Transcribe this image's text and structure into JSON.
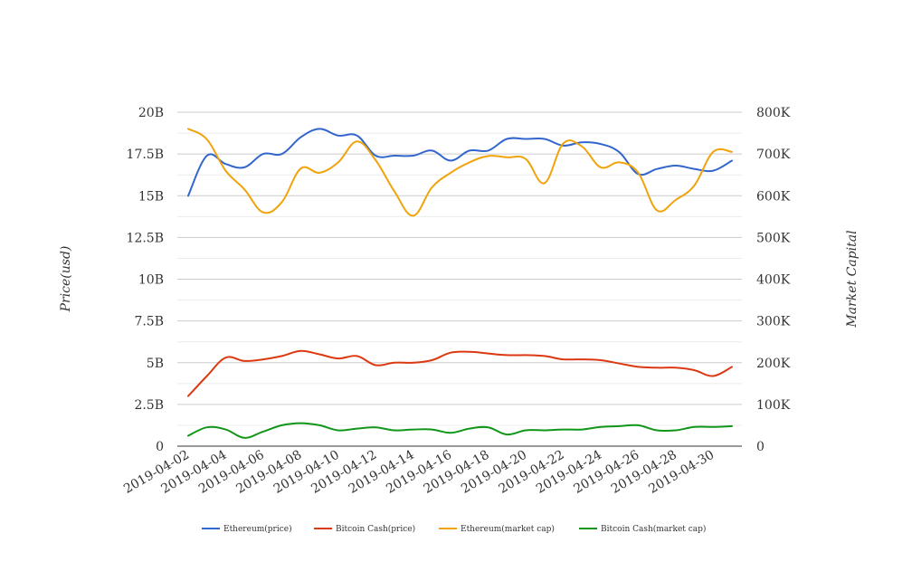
{
  "chart_data": {
    "type": "line",
    "title": "",
    "y_left_label": "Price(usd)",
    "y_right_label": "Market Capital",
    "y_left_range": [
      0,
      20000000000
    ],
    "y_right_range": [
      0,
      800000
    ],
    "y_left_ticks": [
      "0",
      "2.5B",
      "5B",
      "7.5B",
      "10B",
      "12.5B",
      "15B",
      "17.5B",
      "20B"
    ],
    "y_right_ticks": [
      "0",
      "100K",
      "200K",
      "300K",
      "400K",
      "500K",
      "600K",
      "700K",
      "800K"
    ],
    "x_tick_labels": [
      "2019-04-02",
      "2019-04-04",
      "2019-04-06",
      "2019-04-08",
      "2019-04-10",
      "2019-04-12",
      "2019-04-14",
      "2019-04-16",
      "2019-04-18",
      "2019-04-20",
      "2019-04-22",
      "2019-04-24",
      "2019-04-26",
      "2019-04-28",
      "2019-04-30"
    ],
    "x": [
      "2019-04-02",
      "2019-04-03",
      "2019-04-04",
      "2019-04-05",
      "2019-04-06",
      "2019-04-07",
      "2019-04-08",
      "2019-04-09",
      "2019-04-10",
      "2019-04-11",
      "2019-04-12",
      "2019-04-13",
      "2019-04-14",
      "2019-04-15",
      "2019-04-16",
      "2019-04-17",
      "2019-04-18",
      "2019-04-19",
      "2019-04-20",
      "2019-04-21",
      "2019-04-22",
      "2019-04-23",
      "2019-04-24",
      "2019-04-25",
      "2019-04-26",
      "2019-04-27",
      "2019-04-28",
      "2019-04-29",
      "2019-04-30",
      "2019-05-01"
    ],
    "legend_position": "bottom",
    "grid": true,
    "series": [
      {
        "name": "Ethereum(price)",
        "axis": "left",
        "color": "#3366cc",
        "values": [
          15000000000,
          17400000000,
          16900000000,
          16700000000,
          17500000000,
          17500000000,
          18500000000,
          19000000000,
          18600000000,
          18600000000,
          17400000000,
          17400000000,
          17400000000,
          17700000000,
          17100000000,
          17700000000,
          17700000000,
          18400000000,
          18400000000,
          18400000000,
          18000000000,
          18200000000,
          18100000000,
          17600000000,
          16300000000,
          16600000000,
          16800000000,
          16600000000,
          16500000000,
          17100000000
        ]
      },
      {
        "name": "Bitcoin Cash(price)",
        "axis": "left",
        "color": "#dc3912",
        "values": [
          3000000000,
          4200000000,
          5300000000,
          5100000000,
          5200000000,
          5400000000,
          5700000000,
          5500000000,
          5250000000,
          5400000000,
          4850000000,
          5000000000,
          5000000000,
          5150000000,
          5600000000,
          5650000000,
          5550000000,
          5450000000,
          5450000000,
          5400000000,
          5200000000,
          5200000000,
          5150000000,
          4950000000,
          4750000000,
          4700000000,
          4700000000,
          4550000000,
          4200000000,
          4750000000
        ]
      },
      {
        "name": "Ethereum(market cap)",
        "axis": "right",
        "color": "#f0a30a",
        "values": [
          760000,
          735000,
          660000,
          615000,
          560000,
          585000,
          665000,
          655000,
          680000,
          730000,
          685000,
          610000,
          552000,
          620000,
          655000,
          680000,
          695000,
          692000,
          688000,
          630000,
          725000,
          718000,
          668000,
          680000,
          655000,
          565000,
          590000,
          625000,
          705000,
          705000
        ]
      },
      {
        "name": "Bitcoin Cash(market cap)",
        "axis": "right",
        "color": "#109618",
        "values": [
          25000,
          45000,
          40000,
          20000,
          35000,
          50000,
          55000,
          50000,
          38000,
          42000,
          45000,
          38000,
          40000,
          40000,
          32000,
          42000,
          45000,
          28000,
          38000,
          38000,
          40000,
          40000,
          46000,
          48000,
          50000,
          38000,
          38000,
          46000,
          46000,
          48000
        ]
      }
    ]
  }
}
